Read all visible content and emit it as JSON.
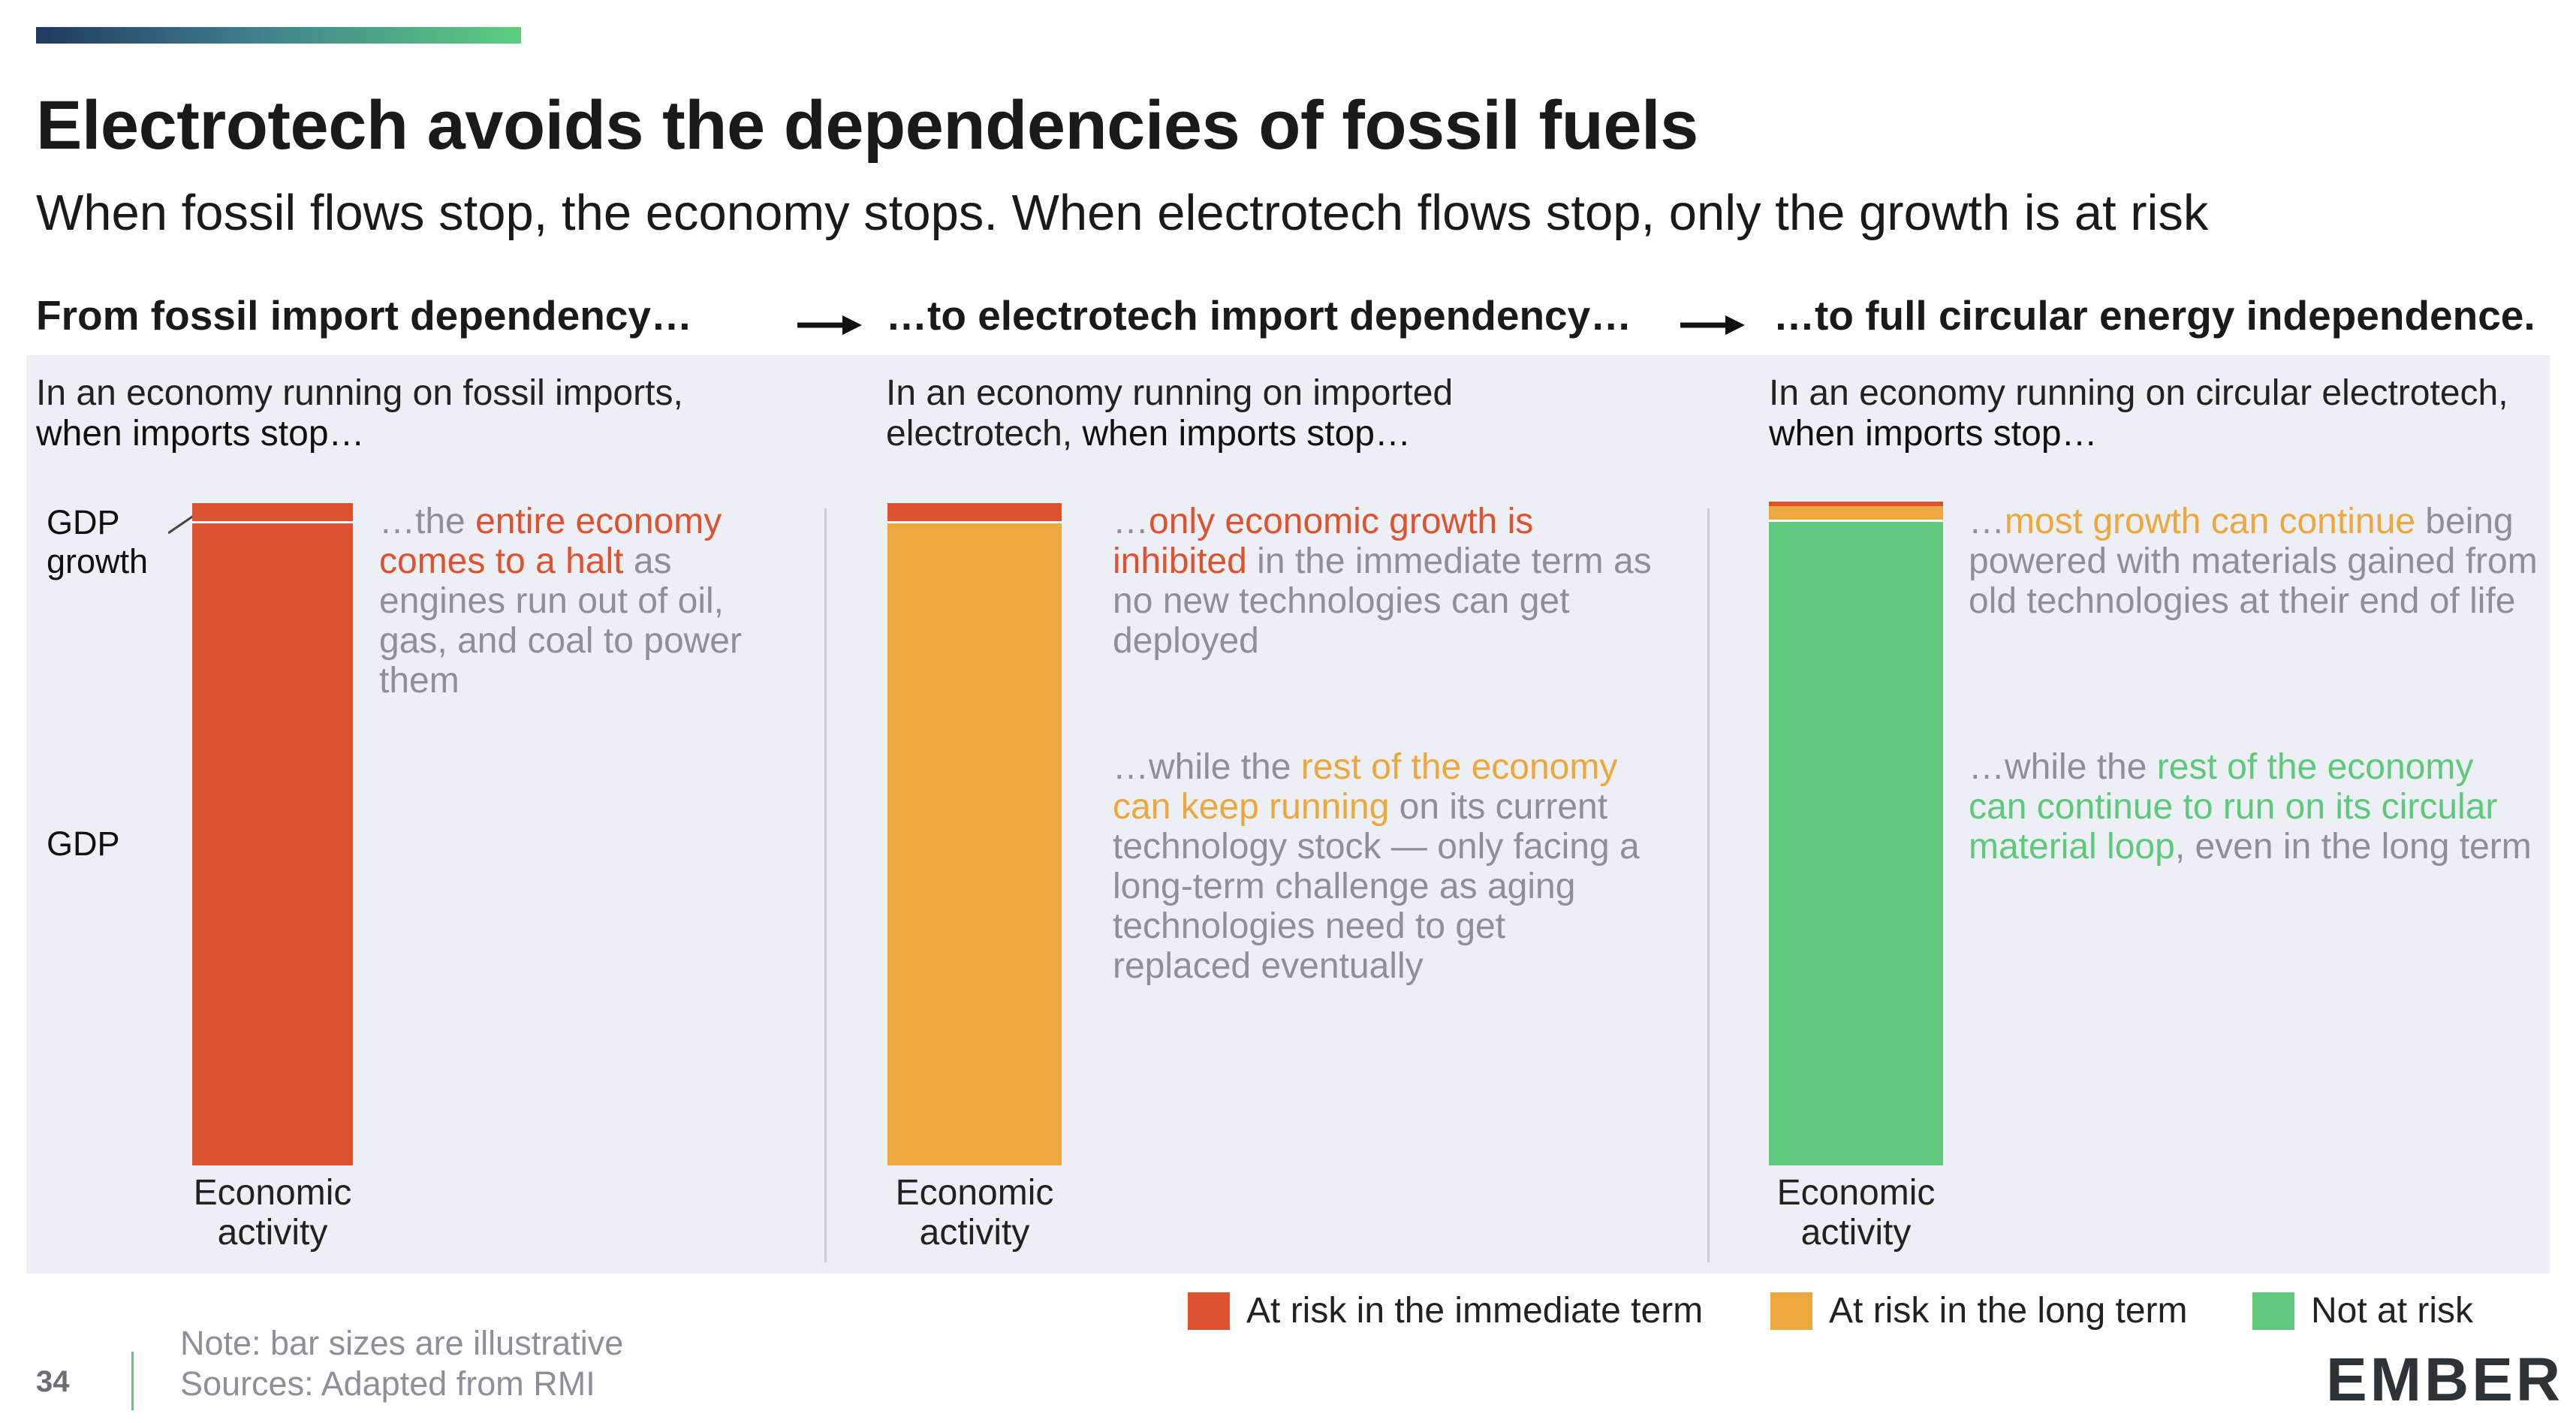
{
  "title": "Electrotech avoids the dependencies of fossil fuels",
  "subtitle": "When fossil flows stop, the economy stops.  When electrotech flows stop, only the growth is at risk",
  "columns": [
    {
      "heading": "From fossil import dependency…",
      "intro_a": "In an economy running on fossil imports,",
      "intro_b": "when imports stop…",
      "xlabel_1": "Economic",
      "xlabel_2": "activity",
      "desc1": {
        "pre": "…the ",
        "hl": "entire economy comes to a halt",
        "post": " as engines run out of oil, gas, and coal to power them"
      },
      "bar": {
        "growth_color": "#dd5231",
        "gdp_color": "#dd5231"
      }
    },
    {
      "heading": "…to electrotech import dependency…",
      "intro_a": "In an economy running on imported",
      "intro_b_plain": "electrotech, ",
      "intro_b": "when imports stop…",
      "xlabel_1": "Economic",
      "xlabel_2": "activity",
      "desc1": {
        "pre": "…",
        "hl": "only economic growth is inhibited",
        "post": " in the immediate term as no new technologies can get deployed"
      },
      "desc2": {
        "pre": "…while the ",
        "hl": "rest of the economy can keep running",
        "post": " on its current technology stock — only facing a long-term challenge as aging technologies need to get replaced eventually"
      },
      "bar": {
        "growth_color": "#dd5231",
        "gdp_color": "#eda73f"
      }
    },
    {
      "heading": "…to full circular energy independence.",
      "intro_a": "In an economy running on circular electrotech,",
      "intro_b": "when imports stop…",
      "xlabel_1": "Economic",
      "xlabel_2": "activity",
      "desc1": {
        "pre": "…",
        "hl": "most growth can continue",
        "post": " being powered with materials gained from old technologies at their end of life"
      },
      "desc2": {
        "pre": "…while the ",
        "hl": "rest of the economy can continue to run on its circular material loop",
        "post": ", even in the long term"
      },
      "bar": {
        "top_color": "#eda73f",
        "growth_color": "#eda73f",
        "gdp_color": "#5ec87c"
      }
    }
  ],
  "y_labels": {
    "growth_1": "GDP",
    "growth_2": "growth",
    "gdp": "GDP"
  },
  "legend": [
    {
      "label": "At risk in the immediate term",
      "color": "#dd5231"
    },
    {
      "label": "At risk in the long term",
      "color": "#eda73f"
    },
    {
      "label": "Not at risk",
      "color": "#5ec87c"
    }
  ],
  "footer": {
    "page_number": "34",
    "note": "Note: bar sizes are illustrative",
    "sources": "Sources: Adapted from RMI",
    "logo": "EMBER"
  }
}
